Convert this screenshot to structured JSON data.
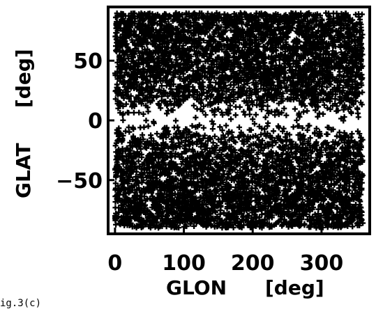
{
  "chart_data": {
    "type": "scatter",
    "xlabel": "GLON",
    "xunit": "[deg]",
    "ylabel": "GLAT",
    "yunit": "[deg]",
    "xlim": [
      -10,
      370
    ],
    "ylim": [
      -95,
      95
    ],
    "xticks": [
      0,
      100,
      200,
      300
    ],
    "yticks": [
      50,
      0,
      -50
    ],
    "marker": "+",
    "marker_color": "#000000",
    "density_regions": [
      {
        "glat_range": [
          12,
          90
        ],
        "glon_range": [
          0,
          360
        ],
        "coverage": "dense"
      },
      {
        "glat_range": [
          -90,
          -12
        ],
        "glon_range": [
          0,
          360
        ],
        "coverage": "dense"
      },
      {
        "glat_range": [
          -12,
          12
        ],
        "glon_range": [
          0,
          360
        ],
        "coverage": "sparse"
      }
    ],
    "isolated_points": [
      {
        "x": 357,
        "y": 15
      },
      {
        "x": 3,
        "y": -8
      },
      {
        "x": 355,
        "y": -88
      }
    ]
  },
  "figure_label": "ig.3(c)"
}
